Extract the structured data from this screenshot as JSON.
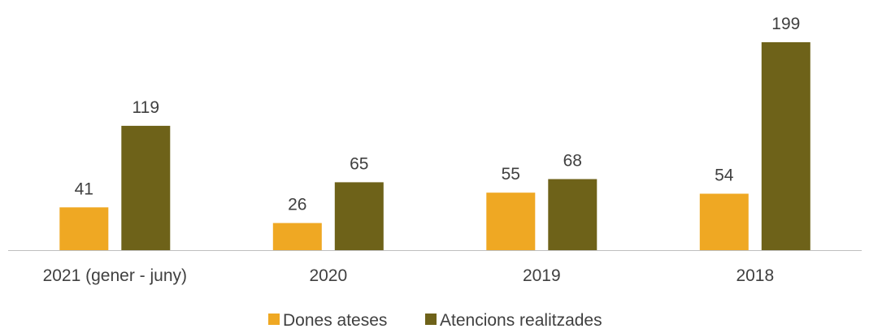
{
  "chart_data": {
    "type": "bar",
    "categories": [
      "2021 (gener - juny)",
      "2020",
      "2019",
      "2018"
    ],
    "series": [
      {
        "name": "Dones ateses",
        "values": [
          41,
          26,
          55,
          54
        ],
        "color": "#EFA823"
      },
      {
        "name": "Atencions realitzades",
        "values": [
          119,
          65,
          68,
          199
        ],
        "color": "#6E6219"
      }
    ],
    "ylim": [
      0,
      210
    ],
    "grid": false,
    "legend": "bottom",
    "axis_color": "#BFBFBF"
  }
}
